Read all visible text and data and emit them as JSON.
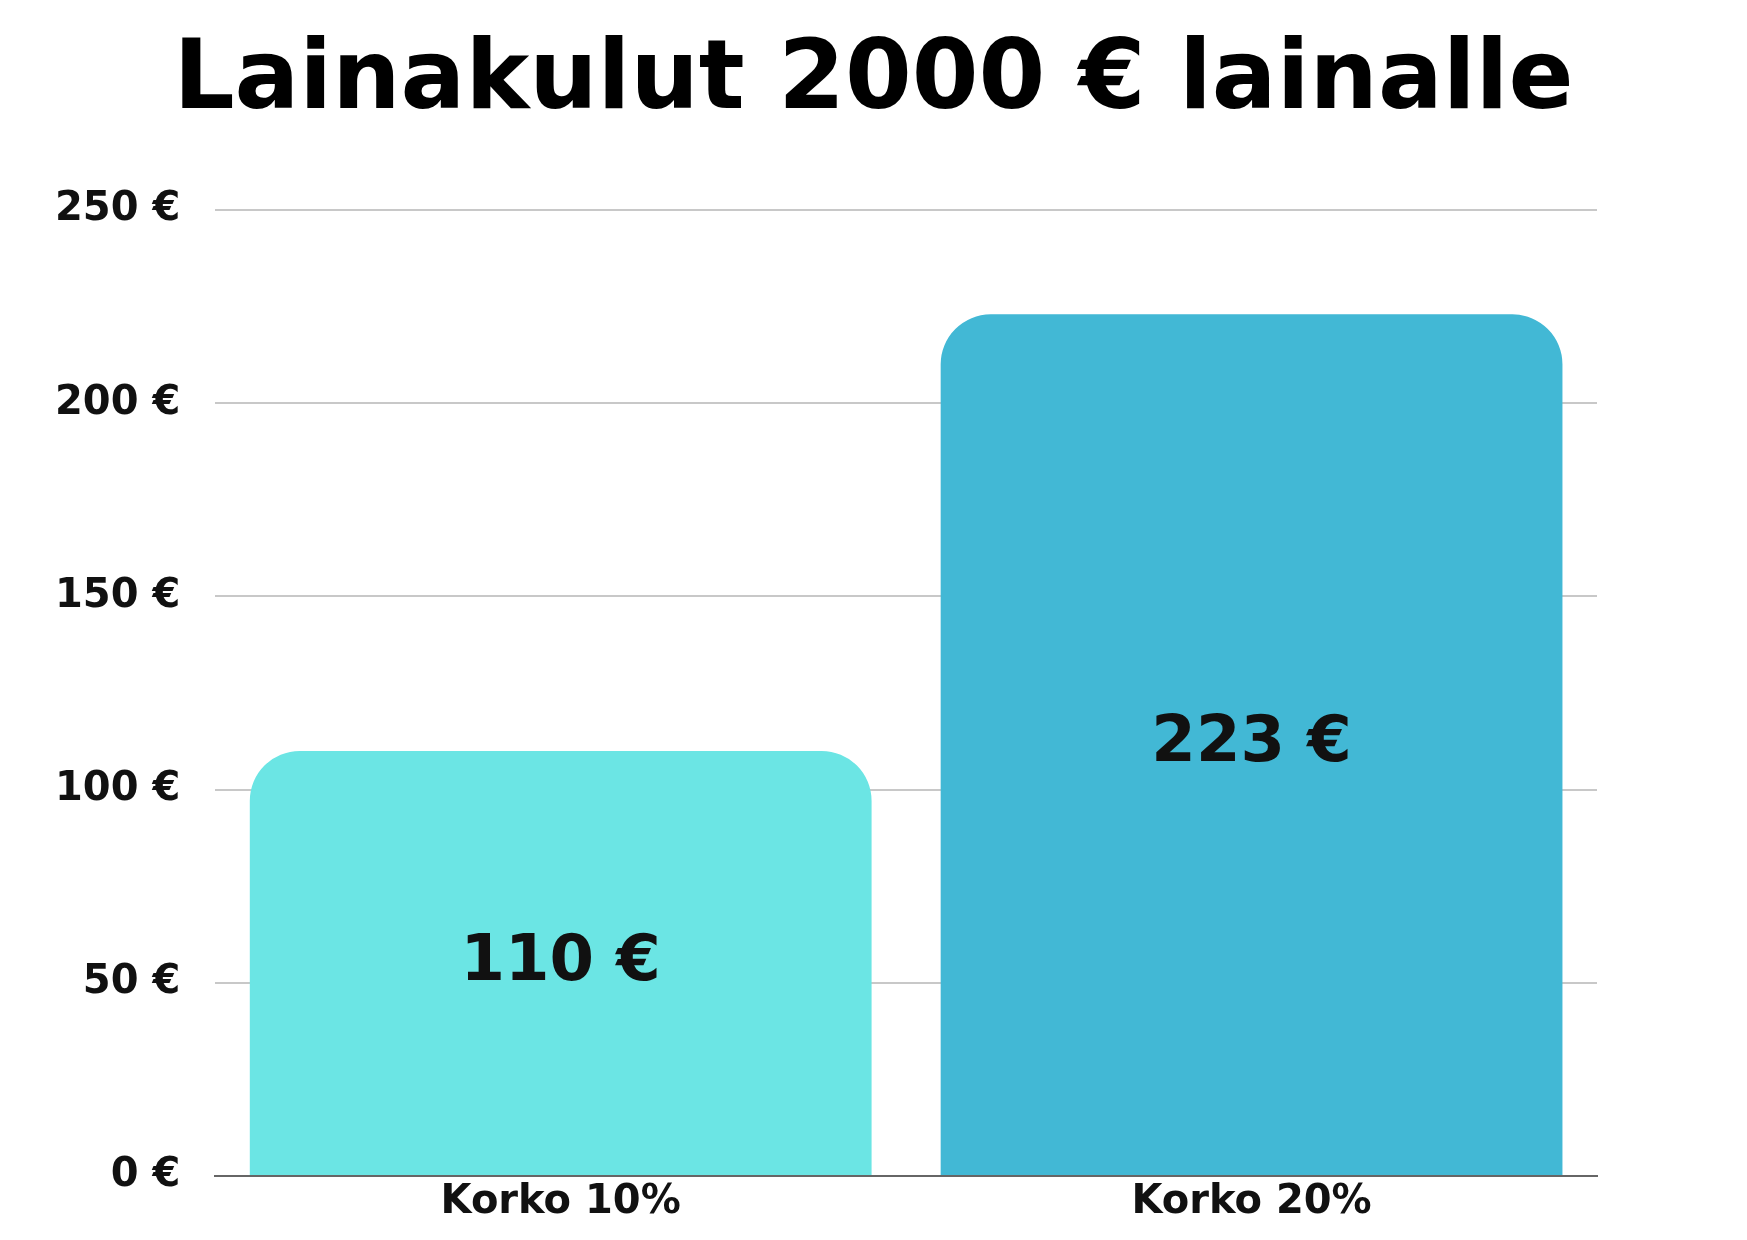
{
  "chart_data": {
    "type": "bar",
    "title": "Lainakulut 2000 € lainalle",
    "categories": [
      "Korko 10%",
      "Korko 20%"
    ],
    "values": [
      110,
      223
    ],
    "colors": [
      "#6be5e4",
      "#42b8d5"
    ],
    "value_labels": [
      "110 €",
      "223 €"
    ],
    "ylim": [
      0,
      250
    ],
    "yticks": [
      {
        "value": 0,
        "label": "0 €"
      },
      {
        "value": 50,
        "label": "50 €"
      },
      {
        "value": 100,
        "label": "100 €"
      },
      {
        "value": 150,
        "label": "150 €"
      },
      {
        "value": 200,
        "label": "200 €"
      },
      {
        "value": 250,
        "label": "250 €"
      }
    ],
    "grid": "y",
    "legend": false
  }
}
